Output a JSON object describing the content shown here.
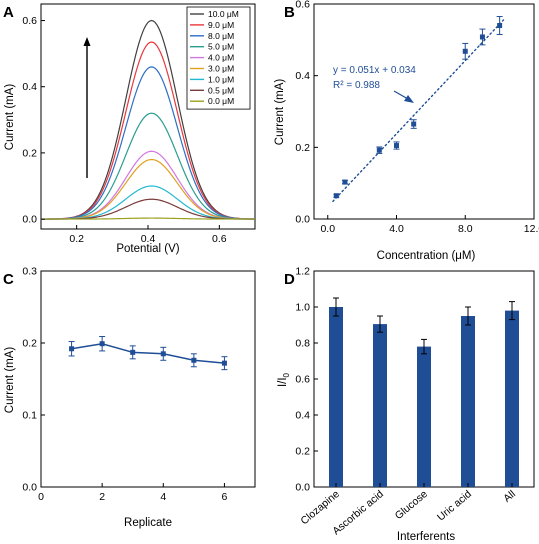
{
  "chart_data": [
    {
      "panel": "A",
      "type": "line",
      "xlabel": "Potential (V)",
      "ylabel": "Current (mA)",
      "xlim": [
        0.1,
        0.7
      ],
      "ylim": [
        -0.03,
        0.65
      ],
      "xticks": [
        "0.2",
        "0.4",
        "0.6"
      ],
      "yticks": [
        "0.0",
        "0.2",
        "0.4",
        "0.6"
      ],
      "legend_position": "top-right",
      "peak_potential": 0.41,
      "peak_width_sigma": 0.072,
      "series": [
        {
          "name": "10.0 μM",
          "peak": 0.6,
          "color": "#404040"
        },
        {
          "name": "9.0 μM",
          "peak": 0.535,
          "color": "#e8383d"
        },
        {
          "name": "8.0 μM",
          "peak": 0.46,
          "color": "#2c6fc6"
        },
        {
          "name": "5.0 μM",
          "peak": 0.32,
          "color": "#2a9d8f"
        },
        {
          "name": "4.0 μM",
          "peak": 0.205,
          "color": "#d177e0"
        },
        {
          "name": "3.0 μM",
          "peak": 0.18,
          "color": "#e0a020"
        },
        {
          "name": "1.0 μM",
          "peak": 0.1,
          "color": "#22b8cf"
        },
        {
          "name": "0.5 μM",
          "peak": 0.06,
          "color": "#7a3b3b"
        },
        {
          "name": "0.0 μM",
          "peak": 0.003,
          "color": "#9aa020"
        }
      ]
    },
    {
      "panel": "B",
      "type": "scatter",
      "xlabel": "Concentration (μM)",
      "ylabel": "Current (mA)",
      "xlim": [
        -0.8,
        12
      ],
      "ylim": [
        0,
        0.6
      ],
      "xticks": [
        "0.0",
        "4.0",
        "8.0",
        "12.0"
      ],
      "yticks": [
        "0.0",
        "0.2",
        "0.4",
        "0.6"
      ],
      "x": [
        0.5,
        1.0,
        3.0,
        4.0,
        5.0,
        8.0,
        9.0,
        10.0
      ],
      "y": [
        0.065,
        0.103,
        0.192,
        0.205,
        0.265,
        0.468,
        0.508,
        0.54
      ],
      "err": [
        0.004,
        0.005,
        0.009,
        0.01,
        0.012,
        0.022,
        0.022,
        0.025
      ],
      "fit": {
        "slope": 0.051,
        "intercept": 0.034,
        "x_range": [
          0.3,
          10.3
        ]
      },
      "equation": "y = 0.051x + 0.034",
      "r2": "R² = 0.988",
      "color": "#1f4e96"
    },
    {
      "panel": "C",
      "type": "line",
      "xlabel": "Replicate",
      "ylabel": "Current (mA)",
      "xlim": [
        0,
        7
      ],
      "ylim": [
        0,
        0.3
      ],
      "xticks": [
        "0",
        "2",
        "4",
        "6"
      ],
      "yticks": [
        "0.0",
        "0.1",
        "0.2",
        "0.3"
      ],
      "x": [
        1,
        2,
        3,
        4,
        5,
        6
      ],
      "y": [
        0.192,
        0.199,
        0.187,
        0.185,
        0.176,
        0.172
      ],
      "err": [
        0.01,
        0.01,
        0.009,
        0.009,
        0.009,
        0.009
      ],
      "color": "#1f4e96"
    },
    {
      "panel": "D",
      "type": "bar",
      "xlabel": "Interferents",
      "ylabel_main": "I/I",
      "ylabel_sub": "0",
      "ylim": [
        0,
        1.2
      ],
      "yticks": [
        "0.0",
        "0.2",
        "0.4",
        "0.6",
        "0.8",
        "1.0",
        "1.2"
      ],
      "categories": [
        "Clozapine",
        "Ascorbic acid",
        "Glucose",
        "Uric acid",
        "All"
      ],
      "values": [
        1.0,
        0.905,
        0.78,
        0.95,
        0.98
      ],
      "err": [
        0.05,
        0.045,
        0.04,
        0.05,
        0.05
      ],
      "color": "#1f4e96"
    }
  ]
}
